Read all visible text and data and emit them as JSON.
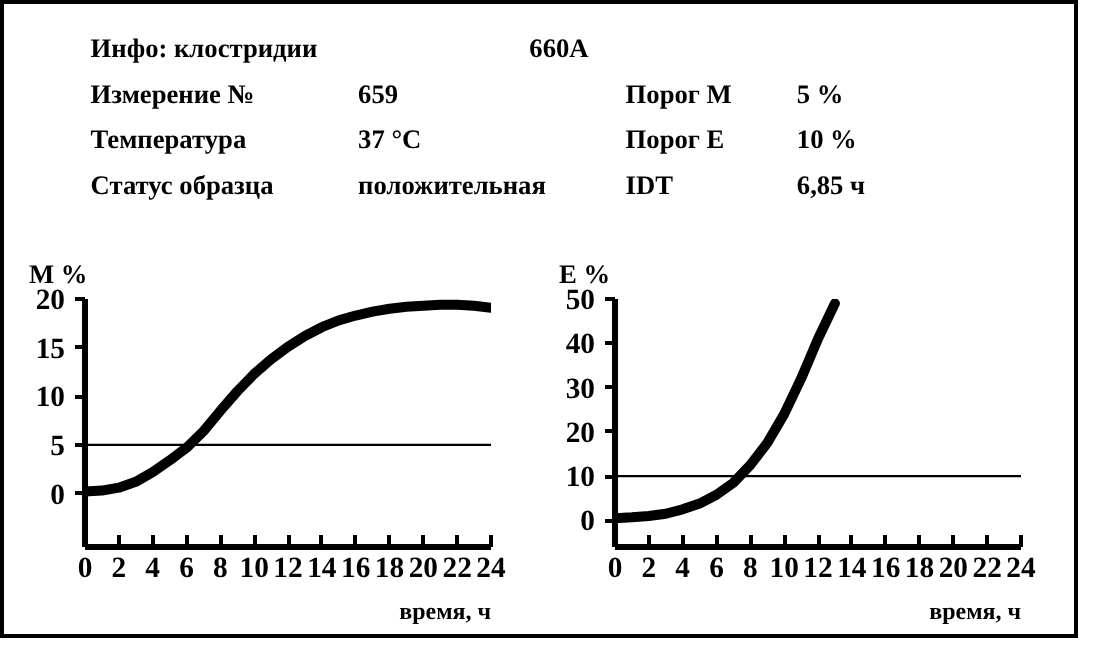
{
  "chart_data": [
    {
      "type": "other",
      "annotations": [
        "Инфо: клостридии",
        "660A",
        "Измерение №",
        "659",
        "Порог M",
        "5 %",
        "Температура",
        "37 °C",
        "Порог E",
        "10 %",
        "Статус образца",
        "положительная",
        "IDT",
        "6,85 ч"
      ]
    },
    {
      "type": "line",
      "ylabel": "M %",
      "xlabel": "время, ч",
      "x": [
        0,
        1,
        2,
        3,
        4,
        5,
        6,
        7,
        8,
        9,
        10,
        11,
        12,
        13,
        14,
        15,
        16,
        17,
        18,
        19,
        20,
        21,
        22,
        23,
        24
      ],
      "series": [
        {
          "color": "#000000",
          "values": [
            0.2,
            0.3,
            0.6,
            1.2,
            2.2,
            3.4,
            4.7,
            6.4,
            8.5,
            10.5,
            12.3,
            13.8,
            15.1,
            16.2,
            17.1,
            17.8,
            18.3,
            18.7,
            19.0,
            19.2,
            19.3,
            19.4,
            19.4,
            19.3,
            19.1
          ]
        }
      ],
      "xlim": [
        0,
        24
      ],
      "xticks": [
        0,
        2,
        4,
        6,
        8,
        10,
        12,
        14,
        16,
        18,
        20,
        22,
        24
      ],
      "ylim": [
        -5.5,
        20
      ],
      "yticks": [
        0,
        5,
        10,
        15,
        20
      ],
      "ref_lines": [
        {
          "axis": "y",
          "value": 5,
          "color": "#000000"
        }
      ],
      "grid": false,
      "marker": "none",
      "line_style": "solid"
    },
    {
      "type": "line",
      "ylabel": "E %",
      "xlabel": "время, ч",
      "x": [
        0,
        1,
        2,
        3,
        4,
        5,
        6,
        7,
        8,
        9,
        10,
        11,
        12,
        13
      ],
      "series": [
        {
          "color": "#000000",
          "values": [
            0.5,
            0.7,
            1,
            1.5,
            2.5,
            3.8,
            5.8,
            8.5,
            12.5,
            17.5,
            24,
            32,
            41,
            49
          ]
        }
      ],
      "xlim": [
        0,
        24
      ],
      "xticks": [
        0,
        2,
        4,
        6,
        8,
        10,
        12,
        14,
        16,
        18,
        20,
        22,
        24
      ],
      "ylim": [
        -6,
        50
      ],
      "yticks": [
        0,
        10,
        20,
        30,
        40,
        50
      ],
      "ref_lines": [
        {
          "axis": "y",
          "value": 10,
          "color": "#000000"
        }
      ],
      "grid": false,
      "marker": "none",
      "line_style": "solid"
    }
  ]
}
